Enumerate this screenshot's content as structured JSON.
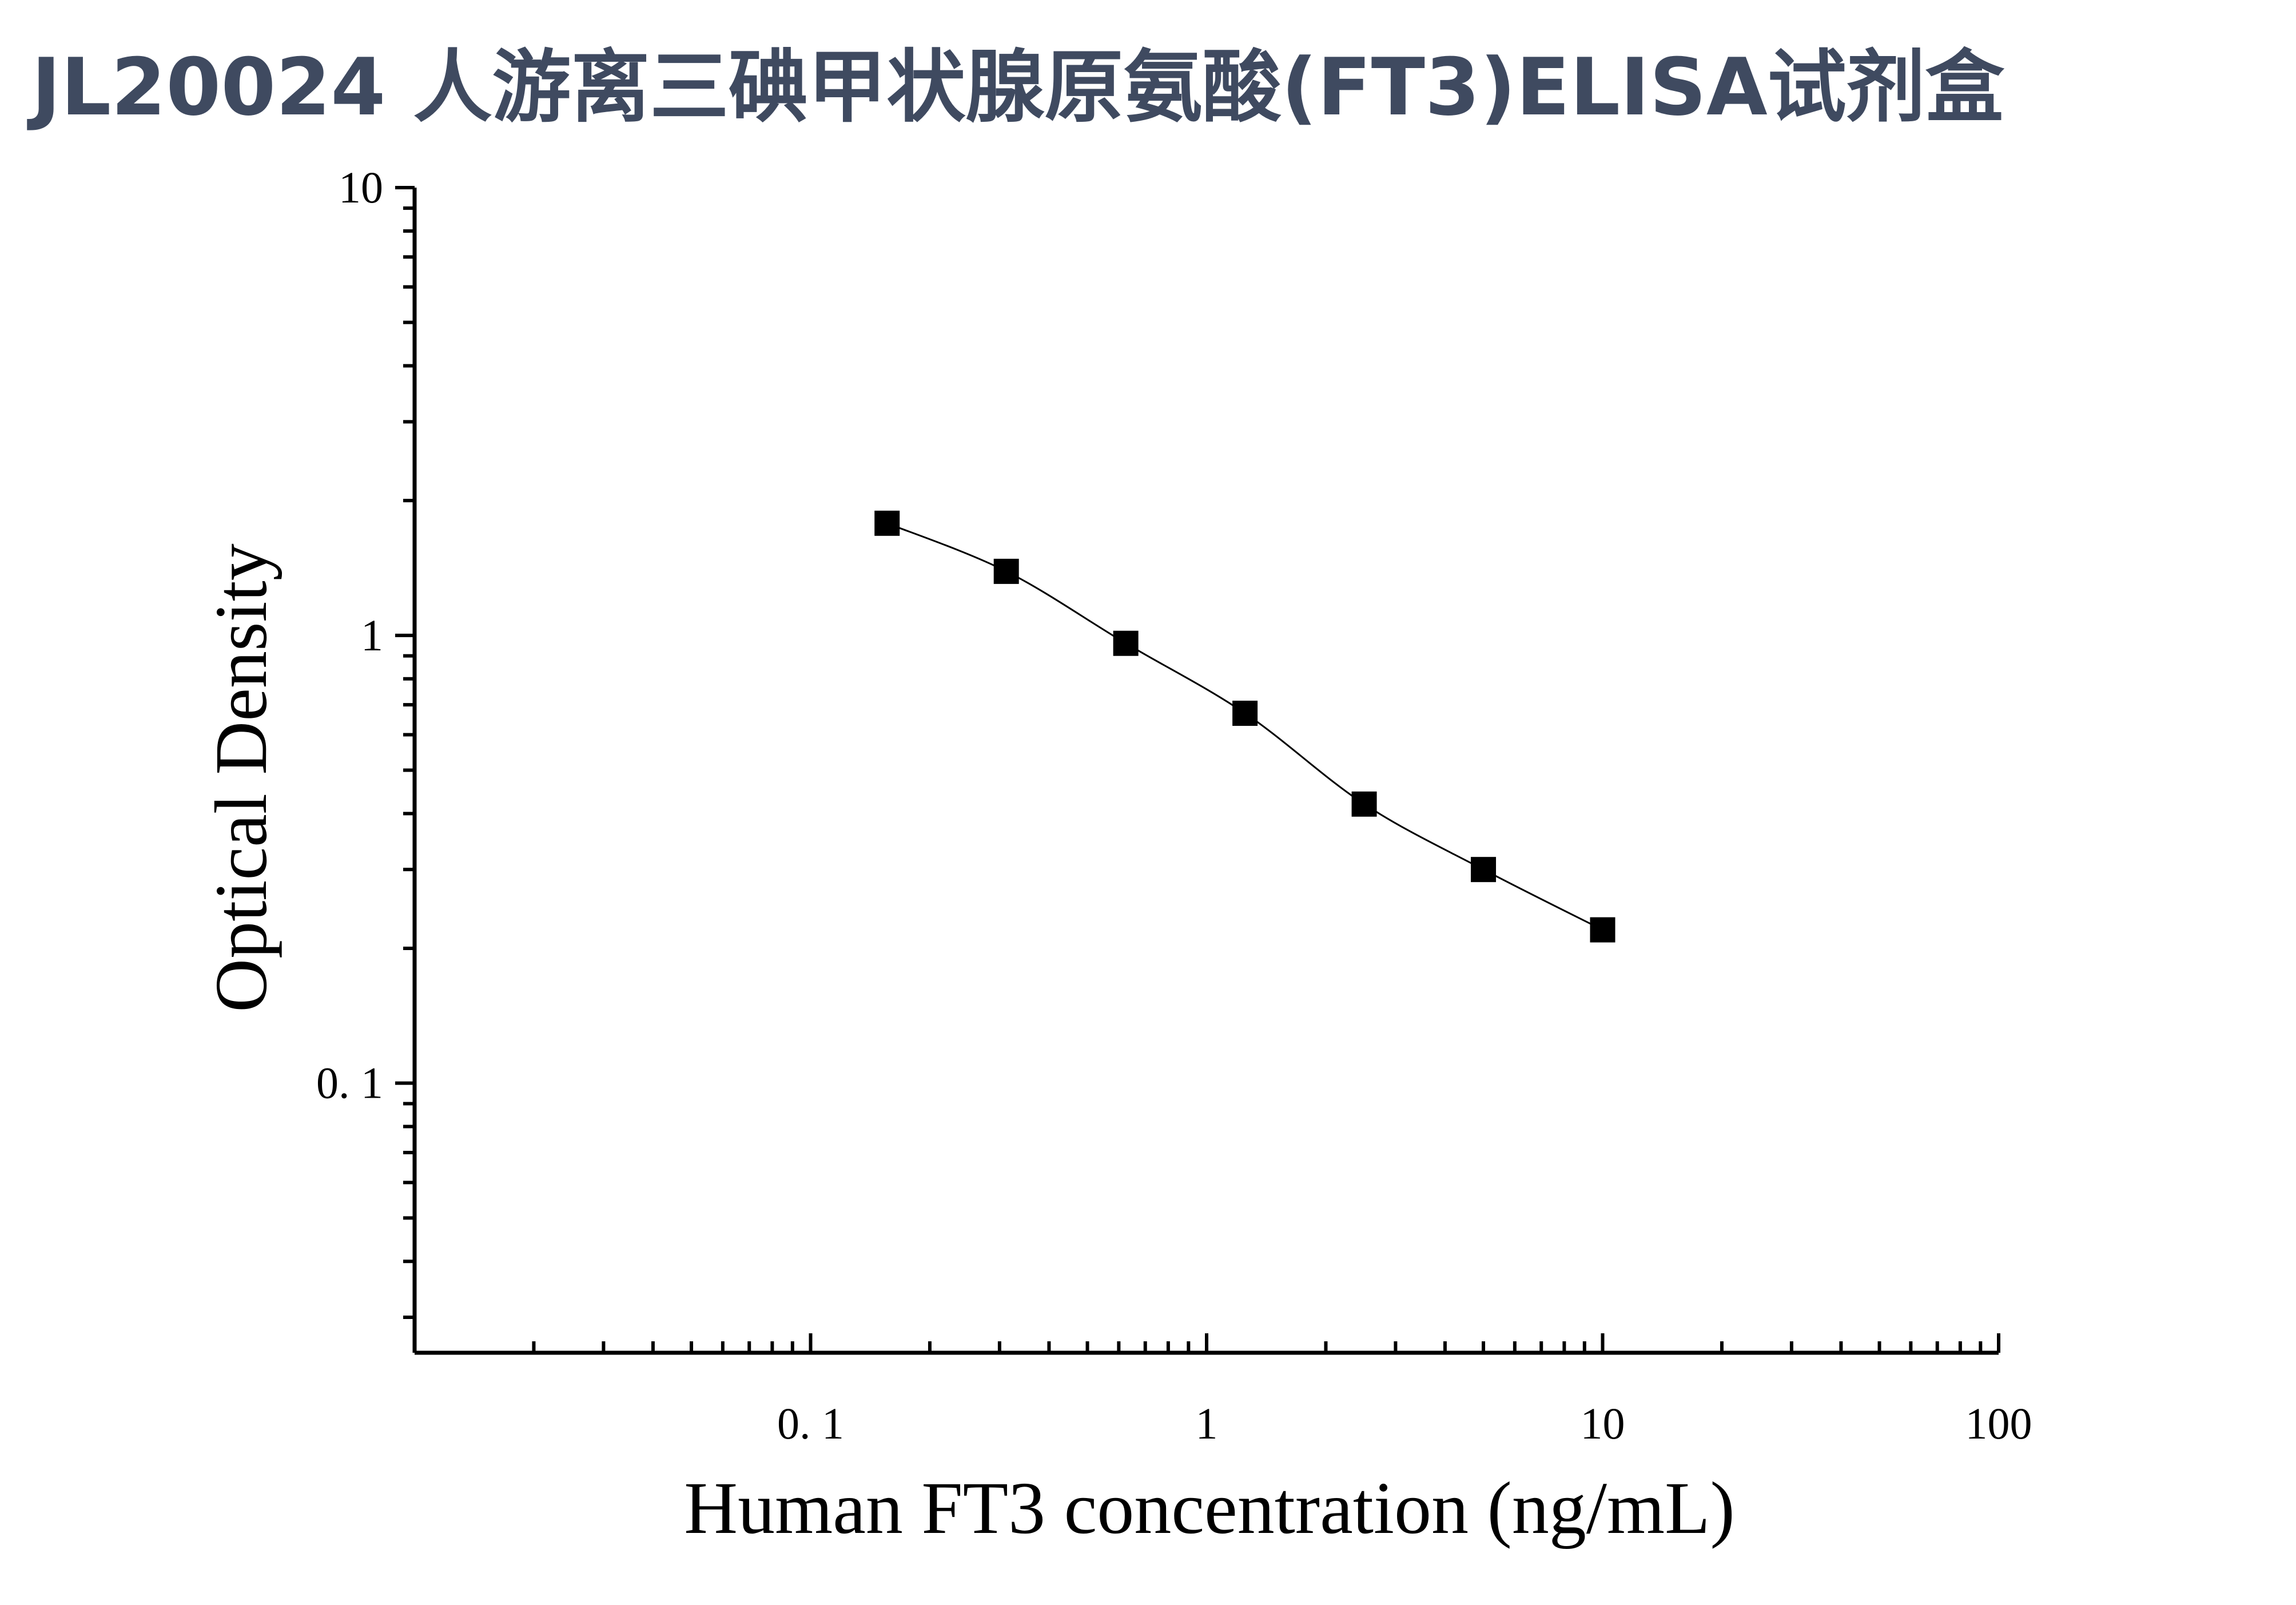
{
  "page_title": "JL20024 人游离三碘甲状腺原氨酸(FT3)ELISA试剂盒",
  "chart_data": {
    "type": "scatter",
    "title": "",
    "xlabel": "Human FT3 concentration (ng/mL)",
    "ylabel": "Optical Density",
    "xscale": "log",
    "yscale": "log",
    "xlim": [
      0.01,
      100
    ],
    "ylim": [
      0.025,
      10
    ],
    "x_ticks": [
      {
        "value": 0.1,
        "label": "0. 1"
      },
      {
        "value": 1,
        "label": "1"
      },
      {
        "value": 10,
        "label": "10"
      },
      {
        "value": 100,
        "label": "100"
      }
    ],
    "y_ticks": [
      {
        "value": 0.1,
        "label": "0. 1"
      },
      {
        "value": 1,
        "label": "1"
      },
      {
        "value": 10,
        "label": "10"
      }
    ],
    "grid": false,
    "marker": "square",
    "fit_curve": true,
    "colors": {
      "marker": "#000000",
      "curve": "#000000",
      "axis": "#000000",
      "title": "#3f4a60"
    },
    "series": [
      {
        "x": [
          0.156,
          0.312,
          0.625,
          1.25,
          2.5,
          5,
          10
        ],
        "y": [
          1.78,
          1.39,
          0.96,
          0.67,
          0.42,
          0.3,
          0.22
        ]
      }
    ]
  }
}
